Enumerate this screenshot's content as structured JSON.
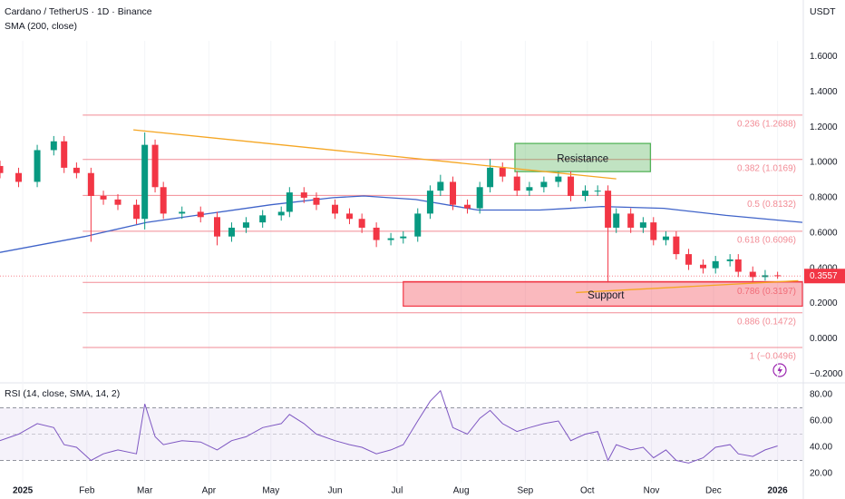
{
  "chart_data": [
    {
      "type": "candlestick",
      "title": "Cardano / TetherUS · 1D · Binance",
      "subtitle": "SMA (200, close)",
      "unit": "USDT",
      "xlim": [
        -11,
        377
      ],
      "xticks": [
        {
          "value": 0,
          "label": "2025"
        },
        {
          "value": 31,
          "label": "Feb"
        },
        {
          "value": 59,
          "label": "Mar"
        },
        {
          "value": 90,
          "label": "Apr"
        },
        {
          "value": 120,
          "label": "May"
        },
        {
          "value": 151,
          "label": "Jun"
        },
        {
          "value": 181,
          "label": "Jul"
        },
        {
          "value": 212,
          "label": "Aug"
        },
        {
          "value": 243,
          "label": "Sep"
        },
        {
          "value": 273,
          "label": "Oct"
        },
        {
          "value": 304,
          "label": "Nov"
        },
        {
          "value": 334,
          "label": "Dec"
        },
        {
          "value": 365,
          "label": "2026"
        }
      ],
      "ylim": [
        -0.24,
        1.69
      ],
      "yticks": [
        {
          "value": 1.6,
          "label": "1.6000"
        },
        {
          "value": 1.4,
          "label": "1.4000"
        },
        {
          "value": 1.2,
          "label": "1.2000"
        },
        {
          "value": 1.0,
          "label": "1.0000"
        },
        {
          "value": 0.8,
          "label": "0.8000"
        },
        {
          "value": 0.6,
          "label": "0.6000"
        },
        {
          "value": 0.4,
          "label": "0.4000"
        },
        {
          "value": 0.2,
          "label": "0.2000"
        },
        {
          "value": 0,
          "label": "0.0000"
        },
        {
          "value": -0.2,
          "label": "−0.2000"
        }
      ],
      "up_color": "#089981",
      "down_color": "#f23645",
      "x": [
        -11,
        -2,
        7,
        15,
        20,
        26,
        33,
        39,
        46,
        55,
        59,
        64,
        68,
        77,
        86,
        94,
        101,
        108,
        116,
        125,
        129,
        136,
        142,
        151,
        158,
        164,
        171,
        178,
        184,
        191,
        197,
        202,
        208,
        215,
        221,
        226,
        232,
        239,
        245,
        252,
        259,
        265,
        272,
        278,
        283,
        287,
        294,
        300,
        305,
        311,
        316,
        322,
        329,
        335,
        342,
        346,
        353,
        359,
        365
      ],
      "open": [
        0.98,
        0.94,
        0.89,
        1.07,
        1.12,
        0.97,
        0.94,
        0.81,
        0.79,
        0.76,
        0.68,
        1.1,
        0.86,
        0.71,
        0.72,
        0.69,
        0.58,
        0.63,
        0.66,
        0.7,
        0.72,
        0.83,
        0.8,
        0.76,
        0.71,
        0.68,
        0.63,
        0.56,
        0.57,
        0.58,
        0.71,
        0.84,
        0.89,
        0.76,
        0.74,
        0.86,
        0.97,
        0.92,
        0.84,
        0.86,
        0.89,
        0.92,
        0.81,
        0.84,
        0.84,
        0.63,
        0.71,
        0.63,
        0.66,
        0.56,
        0.58,
        0.48,
        0.42,
        0.4,
        0.44,
        0.45,
        0.38,
        0.35,
        0.36
      ],
      "high": [
        1.01,
        0.97,
        1.1,
        1.15,
        1.15,
        1.0,
        0.97,
        0.84,
        0.82,
        0.79,
        1.17,
        1.13,
        0.89,
        0.75,
        0.75,
        0.72,
        0.66,
        0.69,
        0.73,
        0.75,
        0.86,
        0.86,
        0.83,
        0.79,
        0.74,
        0.71,
        0.66,
        0.6,
        0.61,
        0.74,
        0.87,
        0.93,
        0.92,
        0.79,
        0.89,
        1.02,
        1.0,
        0.95,
        0.89,
        0.92,
        0.95,
        0.95,
        0.87,
        0.87,
        0.87,
        0.74,
        0.74,
        0.69,
        0.69,
        0.61,
        0.61,
        0.51,
        0.45,
        0.47,
        0.48,
        0.48,
        0.41,
        0.39,
        0.38
      ],
      "low": [
        0.91,
        0.86,
        0.86,
        1.04,
        0.94,
        0.91,
        0.55,
        0.76,
        0.73,
        0.65,
        0.62,
        0.83,
        0.68,
        0.68,
        0.66,
        0.53,
        0.55,
        0.6,
        0.63,
        0.67,
        0.69,
        0.77,
        0.73,
        0.68,
        0.65,
        0.6,
        0.52,
        0.53,
        0.54,
        0.55,
        0.68,
        0.81,
        0.73,
        0.71,
        0.71,
        0.83,
        0.89,
        0.81,
        0.81,
        0.83,
        0.86,
        0.78,
        0.78,
        0.81,
        0.32,
        0.6,
        0.6,
        0.6,
        0.53,
        0.53,
        0.45,
        0.39,
        0.37,
        0.37,
        0.41,
        0.35,
        0.32,
        0.33,
        0.34
      ],
      "close": [
        0.94,
        0.89,
        1.07,
        1.12,
        0.97,
        0.94,
        0.81,
        0.79,
        0.76,
        0.68,
        1.1,
        0.86,
        0.71,
        0.72,
        0.69,
        0.58,
        0.63,
        0.66,
        0.7,
        0.72,
        0.83,
        0.8,
        0.76,
        0.71,
        0.68,
        0.63,
        0.56,
        0.57,
        0.58,
        0.71,
        0.84,
        0.89,
        0.76,
        0.74,
        0.86,
        0.97,
        0.92,
        0.84,
        0.86,
        0.89,
        0.92,
        0.81,
        0.84,
        0.84,
        0.63,
        0.71,
        0.63,
        0.66,
        0.56,
        0.58,
        0.48,
        0.42,
        0.4,
        0.44,
        0.45,
        0.38,
        0.35,
        0.36,
        0.3557
      ],
      "last_price": 0.3557,
      "sma": {
        "color": "#3f63c9",
        "x": [
          -11,
          30,
          60,
          90,
          120,
          150,
          165,
          190,
          220,
          250,
          280,
          310,
          340,
          377
        ],
        "values": [
          0.49,
          0.58,
          0.66,
          0.71,
          0.76,
          0.8,
          0.81,
          0.79,
          0.73,
          0.73,
          0.75,
          0.74,
          0.7,
          0.66
        ]
      },
      "fib": {
        "color": "#f28b95",
        "from_x": 29,
        "levels": [
          {
            "value": 1.2688,
            "label": "0.236 (1.2688)"
          },
          {
            "value": 1.0169,
            "label": "0.382 (1.0169)"
          },
          {
            "value": 0.8132,
            "label": "0.5 (0.8132)"
          },
          {
            "value": 0.6096,
            "label": "0.618 (0.6096)"
          },
          {
            "value": 0.3197,
            "label": "0.786 (0.3197)"
          },
          {
            "value": 0.1472,
            "label": "0.886 (0.1472)"
          },
          {
            "value": -0.0496,
            "label": "1 (−0.0496)"
          }
        ]
      },
      "trendlines": [
        {
          "color": "#f5a623",
          "x": [
            53.5,
            287
          ],
          "y": [
            1.185,
            0.907
          ]
        },
        {
          "color": "#f5a623",
          "x": [
            267.5,
            375
          ],
          "y": [
            0.262,
            0.329
          ]
        }
      ],
      "boxes": [
        {
          "label": "Resistance",
          "color": "#4caf50",
          "x": [
            238,
            303.5
          ],
          "y": [
            0.948,
            1.108
          ]
        },
        {
          "label": "Support",
          "color": "#f23645",
          "x": [
            184,
            377
          ],
          "y": [
            0.185,
            0.324
          ]
        }
      ]
    },
    {
      "type": "line",
      "title": "RSI (14, close, SMA, 14, 2)",
      "xlim": [
        -11,
        377
      ],
      "ylim": [
        13.1,
        86.9
      ],
      "yticks": [
        {
          "value": 80,
          "label": "80.00"
        },
        {
          "value": 60,
          "label": "60.00"
        },
        {
          "value": 40,
          "label": "40.00"
        },
        {
          "value": 20,
          "label": "20.00"
        }
      ],
      "bands": [
        30,
        50,
        70
      ],
      "color": "#7e57c2",
      "x": [
        -11,
        -2,
        7,
        15,
        20,
        26,
        33,
        39,
        46,
        55,
        59,
        64,
        68,
        77,
        86,
        94,
        101,
        108,
        116,
        125,
        129,
        136,
        142,
        151,
        158,
        164,
        171,
        178,
        184,
        191,
        197,
        202,
        208,
        215,
        221,
        226,
        232,
        239,
        245,
        252,
        259,
        265,
        272,
        278,
        283,
        287,
        294,
        300,
        305,
        311,
        316,
        322,
        329,
        335,
        342,
        346,
        353,
        359,
        365
      ],
      "values": [
        45,
        50,
        58,
        55,
        42,
        40,
        30,
        35,
        38,
        35,
        73,
        48,
        42,
        45,
        44,
        38,
        45,
        48,
        55,
        58,
        65,
        58,
        50,
        45,
        42,
        40,
        35,
        38,
        42,
        60,
        75,
        83,
        55,
        50,
        62,
        68,
        58,
        52,
        55,
        58,
        60,
        45,
        50,
        52,
        30,
        42,
        38,
        40,
        32,
        38,
        30,
        28,
        32,
        40,
        42,
        35,
        33,
        38,
        41
      ]
    }
  ]
}
